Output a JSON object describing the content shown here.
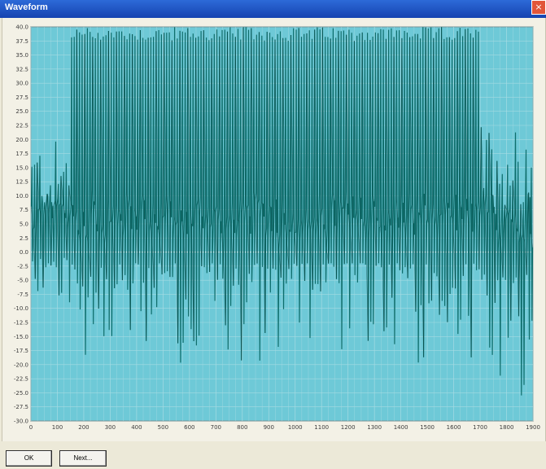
{
  "window": {
    "title": "Waveform",
    "close_glyph": "×"
  },
  "buttons": {
    "ok_label": "OK",
    "next_label": "Next..."
  },
  "colors": {
    "plot_bg": "#6ec9d7",
    "trace": "#0f6e6c",
    "trace_dark": "#083f3e",
    "grid": "#a6dbe3",
    "zero_line": "#e6f6f8"
  },
  "chart_data": {
    "type": "line",
    "title": "",
    "xlabel": "",
    "ylabel": "",
    "xlim": [
      0,
      1900
    ],
    "ylim": [
      -30,
      40
    ],
    "grid": true,
    "y_tick_labels": [
      "40.0",
      "37.5",
      "35.0",
      "32.5",
      "30.0",
      "27.5",
      "25.0",
      "22.5",
      "20.0",
      "17.5",
      "15.0",
      "12.5",
      "10.0",
      "7.5",
      "5.0",
      "2.5",
      "0.0",
      "-2.5",
      "-5.0",
      "-7.5",
      "-10.0",
      "-12.5",
      "-15.0",
      "-17.5",
      "-20.0",
      "-22.5",
      "-25.0",
      "-27.5",
      "-30.0"
    ],
    "x_tick_labels": [
      "0",
      "100",
      "200",
      "300",
      "400",
      "500",
      "600",
      "700",
      "800",
      "900",
      "1000",
      "1100",
      "1200",
      "1300",
      "1400",
      "1500",
      "1600",
      "1700",
      "1800",
      "1900"
    ],
    "segments": [
      {
        "x0": 0,
        "x1": 150,
        "peak_max": 20,
        "peak_min": 6,
        "trough_min": -10,
        "trough_max": -1
      },
      {
        "x0": 150,
        "x1": 1700,
        "peak_max": 40,
        "peak_min": 37.5,
        "trough_min": -20,
        "trough_max": -2
      },
      {
        "x0": 1700,
        "x1": 1900,
        "peak_max": 23,
        "peak_min": 8,
        "trough_min": -30,
        "trough_max": -4
      }
    ],
    "cycle_count": 190
  }
}
